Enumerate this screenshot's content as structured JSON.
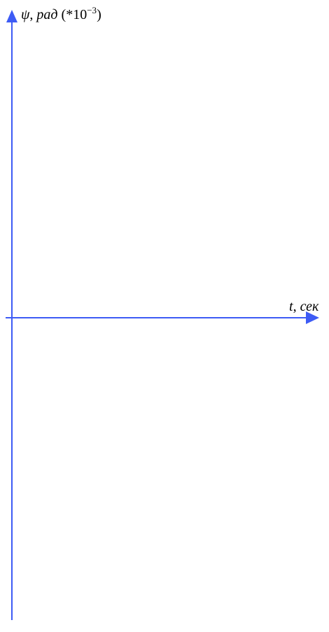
{
  "chart_data": {
    "type": "line",
    "title": "",
    "series": [],
    "grid": false,
    "x_axis": {
      "symbol": "t",
      "unit": "сек"
    },
    "y_axis": {
      "symbol": "ψ",
      "unit": "рад",
      "multiplier_base": "(*10",
      "multiplier_exp": "−3",
      "multiplier_close": ")"
    },
    "colors": {
      "axis": "#3d5bf5",
      "text": "#000000"
    }
  }
}
